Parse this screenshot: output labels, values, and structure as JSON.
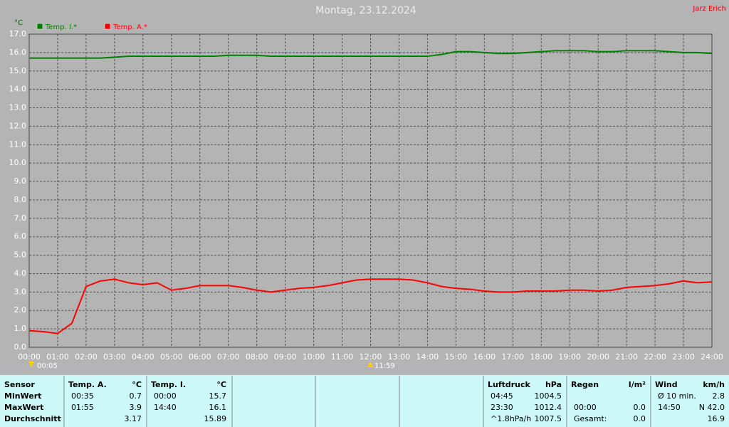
{
  "chart_data": {
    "type": "line",
    "title": "Montag, 23.12.2024",
    "corner_text": "Jarz Erich",
    "y_unit": "°C",
    "annotations": [
      "00:05",
      "11:59"
    ],
    "x": [
      0,
      0.5,
      1,
      1.5,
      2,
      2.5,
      3,
      3.5,
      4,
      4.5,
      5,
      5.5,
      6,
      6.5,
      7,
      7.5,
      8,
      8.5,
      9,
      9.5,
      10,
      10.5,
      11,
      11.5,
      12,
      12.5,
      13,
      13.5,
      14,
      14.5,
      15,
      15.5,
      16,
      16.5,
      17,
      17.5,
      18,
      18.5,
      19,
      19.5,
      20,
      20.5,
      21,
      21.5,
      22,
      22.5,
      23,
      23.5,
      24
    ],
    "series": [
      {
        "name": "Temp. I.*",
        "color": "#008000",
        "values": [
          15.7,
          15.7,
          15.7,
          15.7,
          15.7,
          15.7,
          15.75,
          15.8,
          15.8,
          15.8,
          15.8,
          15.8,
          15.8,
          15.8,
          15.85,
          15.85,
          15.85,
          15.8,
          15.8,
          15.8,
          15.8,
          15.8,
          15.8,
          15.8,
          15.8,
          15.8,
          15.8,
          15.8,
          15.8,
          15.9,
          16.05,
          16.05,
          16.0,
          15.95,
          15.95,
          16.0,
          16.05,
          16.1,
          16.1,
          16.1,
          16.05,
          16.05,
          16.1,
          16.1,
          16.1,
          16.05,
          16.0,
          16.0,
          15.95
        ]
      },
      {
        "name": "Temp. A.*",
        "color": "#ff0000",
        "values": [
          0.9,
          0.85,
          0.75,
          1.3,
          3.3,
          3.6,
          3.7,
          3.5,
          3.4,
          3.5,
          3.1,
          3.2,
          3.35,
          3.35,
          3.35,
          3.25,
          3.1,
          3.0,
          3.1,
          3.2,
          3.25,
          3.35,
          3.5,
          3.65,
          3.7,
          3.7,
          3.7,
          3.65,
          3.5,
          3.3,
          3.2,
          3.15,
          3.05,
          3.0,
          3.0,
          3.05,
          3.05,
          3.05,
          3.1,
          3.1,
          3.05,
          3.1,
          3.25,
          3.3,
          3.35,
          3.45,
          3.6,
          3.5,
          3.55
        ]
      }
    ],
    "xlim": [
      0,
      24
    ],
    "xticks": [
      {
        "value": 0,
        "label": "00:00"
      },
      {
        "value": 1,
        "label": "01:00"
      },
      {
        "value": 2,
        "label": "02:00"
      },
      {
        "value": 3,
        "label": "03:00"
      },
      {
        "value": 4,
        "label": "04:00"
      },
      {
        "value": 5,
        "label": "05:00"
      },
      {
        "value": 6,
        "label": "06:00"
      },
      {
        "value": 7,
        "label": "07:00"
      },
      {
        "value": 8,
        "label": "08:00"
      },
      {
        "value": 9,
        "label": "09:00"
      },
      {
        "value": 10,
        "label": "10:00"
      },
      {
        "value": 11,
        "label": "11:00"
      },
      {
        "value": 12,
        "label": "12:00"
      },
      {
        "value": 13,
        "label": "13:00"
      },
      {
        "value": 14,
        "label": "14:00"
      },
      {
        "value": 15,
        "label": "15:00"
      },
      {
        "value": 16,
        "label": "16:00"
      },
      {
        "value": 17,
        "label": "17:00"
      },
      {
        "value": 18,
        "label": "18:00"
      },
      {
        "value": 19,
        "label": "19:00"
      },
      {
        "value": 20,
        "label": "20:00"
      },
      {
        "value": 21,
        "label": "21:00"
      },
      {
        "value": 22,
        "label": "22:00"
      },
      {
        "value": 23,
        "label": "23:00"
      },
      {
        "value": 24,
        "label": "24:00"
      }
    ],
    "ylim": [
      0,
      17
    ],
    "yticks": [
      {
        "value": 0,
        "label": "0.0"
      },
      {
        "value": 1,
        "label": "1.0"
      },
      {
        "value": 2,
        "label": "2.0"
      },
      {
        "value": 3,
        "label": "3.0"
      },
      {
        "value": 4,
        "label": "4.0"
      },
      {
        "value": 5,
        "label": "5.0"
      },
      {
        "value": 6,
        "label": "6.0"
      },
      {
        "value": 7,
        "label": "7.0"
      },
      {
        "value": 8,
        "label": "8.0"
      },
      {
        "value": 9,
        "label": "9.0"
      },
      {
        "value": 10,
        "label": "10.0"
      },
      {
        "value": 11,
        "label": "11.0"
      },
      {
        "value": 12,
        "label": "12.0"
      },
      {
        "value": 13,
        "label": "13.0"
      },
      {
        "value": 14,
        "label": "14.0"
      },
      {
        "value": 15,
        "label": "15.0"
      },
      {
        "value": 16,
        "label": "16.0"
      },
      {
        "value": 17,
        "label": "17.0"
      }
    ],
    "grid": true
  },
  "table": {
    "row_labels": [
      "Sensor",
      "MinWert",
      "MaxWert",
      "Durchschnitt"
    ],
    "sections": [
      {
        "header": "Temp. A.",
        "unit": "°C",
        "rows": [
          {
            "time": "00:35",
            "value": "0.7"
          },
          {
            "time": "01:55",
            "value": "3.9"
          },
          {
            "value": "3.17"
          }
        ]
      },
      {
        "header": "Temp. I.",
        "unit": "°C",
        "rows": [
          {
            "time": "00:00",
            "value": "15.7"
          },
          {
            "time": "14:40",
            "value": "16.1"
          },
          {
            "value": "15.89"
          }
        ]
      },
      {
        "header": "Luftdruck",
        "unit": "hPa",
        "rows": [
          {
            "time": "04:45",
            "value": "1004.5"
          },
          {
            "time": "23:30",
            "value": "1012.4"
          },
          {
            "time": "^1.8hPa/h",
            "value": "1007.5"
          }
        ]
      },
      {
        "header": "Regen",
        "unit": "l/m²",
        "rows": [
          {},
          {
            "time": "00:00",
            "value": "0.0"
          },
          {
            "time": "Gesamt:",
            "value": "0.0"
          }
        ]
      },
      {
        "header": "Wind",
        "unit": "km/h",
        "rows": [
          {
            "time": "Ø 10 min.",
            "value": "2.8"
          },
          {
            "time": "14:50",
            "value": "N 42.0"
          },
          {
            "value": "16.9"
          }
        ]
      }
    ]
  }
}
